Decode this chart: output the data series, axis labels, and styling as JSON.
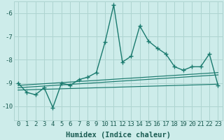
{
  "xlabel": "Humidex (Indice chaleur)",
  "ylabel": "",
  "background_color": "#cdecea",
  "grid_color": "#aed4d0",
  "line_color": "#1a7a6e",
  "xlim": [
    -0.5,
    23.5
  ],
  "ylim": [
    -10.6,
    -5.5
  ],
  "yticks": [
    -10,
    -9,
    -8,
    -7,
    -6
  ],
  "xticks": [
    0,
    1,
    2,
    3,
    4,
    5,
    6,
    7,
    8,
    9,
    10,
    11,
    12,
    13,
    14,
    15,
    16,
    17,
    18,
    19,
    20,
    21,
    22,
    23
  ],
  "main_x": [
    0,
    1,
    2,
    3,
    4,
    5,
    6,
    7,
    8,
    9,
    10,
    11,
    12,
    13,
    14,
    15,
    16,
    17,
    18,
    19,
    20,
    21,
    22,
    23
  ],
  "main_y": [
    -9.0,
    -9.4,
    -9.5,
    -9.2,
    -10.05,
    -9.0,
    -9.1,
    -8.85,
    -8.75,
    -8.55,
    -7.25,
    -5.65,
    -8.1,
    -7.85,
    -6.55,
    -7.2,
    -7.5,
    -7.75,
    -8.3,
    -8.45,
    -8.3,
    -8.3,
    -7.75,
    -9.1
  ],
  "trend1_x": [
    0,
    23
  ],
  "trend1_y": [
    -9.1,
    -8.55
  ],
  "trend2_x": [
    0,
    23
  ],
  "trend2_y": [
    -9.2,
    -8.65
  ],
  "trend3_x": [
    0,
    23
  ],
  "trend3_y": [
    -9.3,
    -9.05
  ],
  "font_color": "#1a5c52",
  "tick_fontsize": 6.5,
  "xlabel_fontsize": 7.5
}
